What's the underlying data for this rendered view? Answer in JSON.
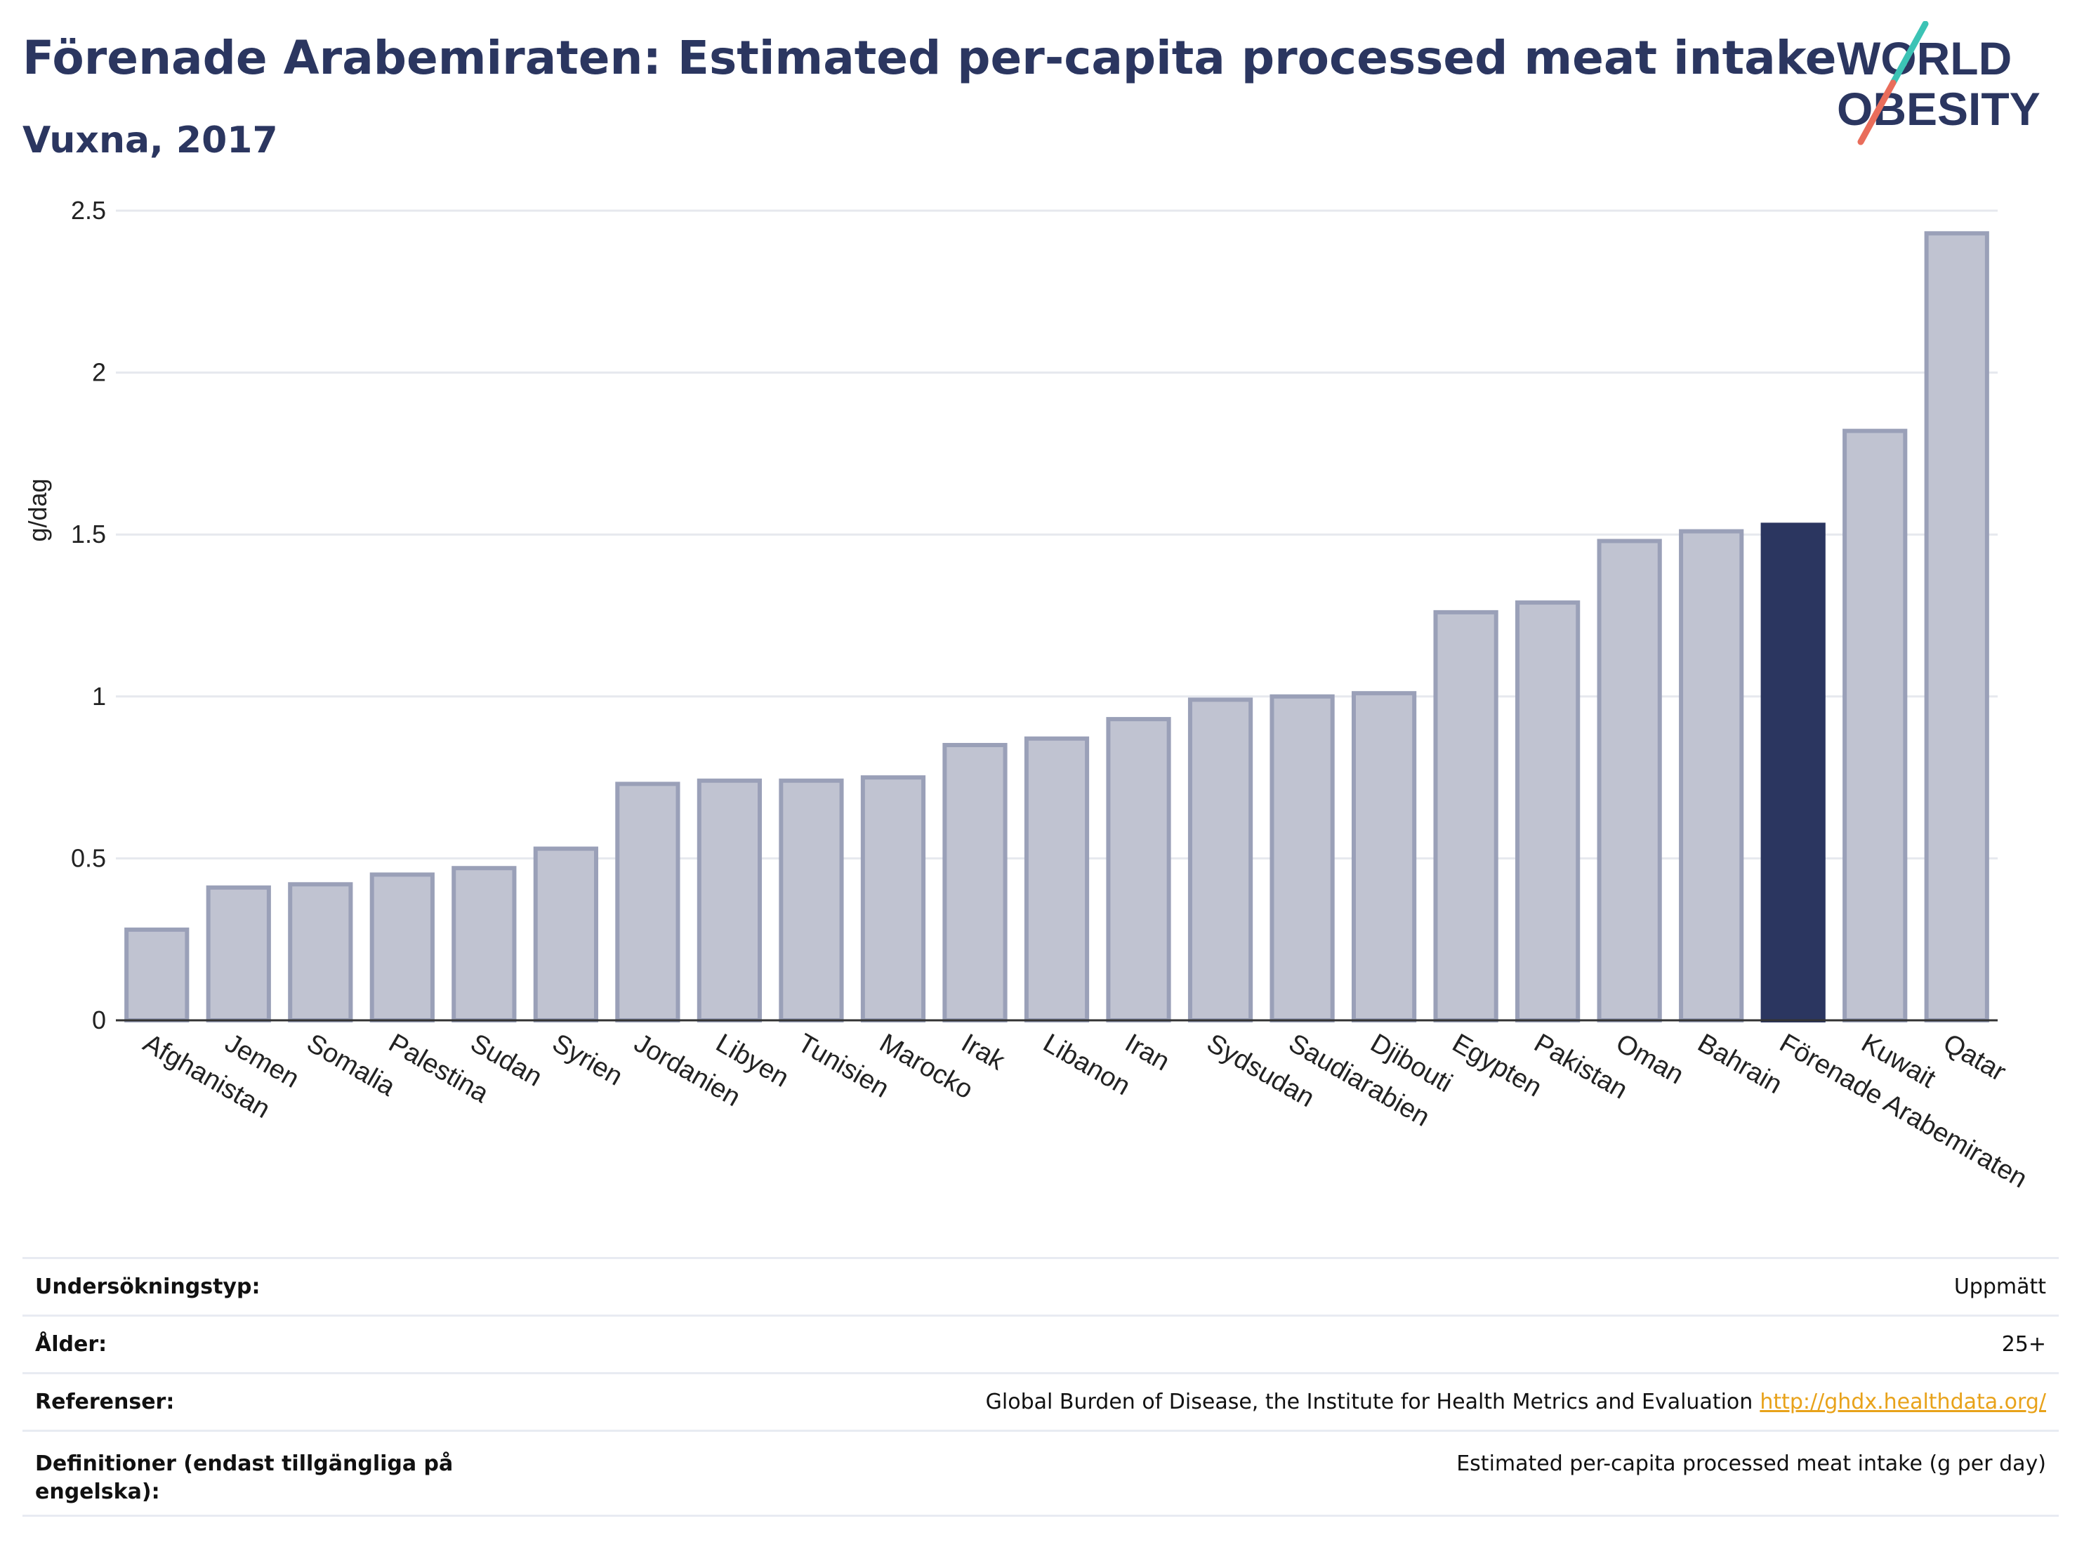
{
  "header": {
    "title": "Förenade Arabemiraten: Estimated per-capita processed meat intake",
    "subtitle": "Vuxna, 2017"
  },
  "logo": {
    "line1": "WORLD",
    "line2": "OBESITY",
    "colors": {
      "text": "#2b3660",
      "slash_top": "#3cc3b5",
      "slash_bottom": "#e96d5b"
    }
  },
  "chart_data": {
    "type": "bar",
    "categories": [
      "Afghanistan",
      "Jemen",
      "Somalia",
      "Palestina",
      "Sudan",
      "Syrien",
      "Jordanien",
      "Libyen",
      "Tunisien",
      "Marocko",
      "Irak",
      "Libanon",
      "Iran",
      "Sydsudan",
      "Saudiarabien",
      "Djibouti",
      "Egypten",
      "Pakistan",
      "Oman",
      "Bahrain",
      "Förenade Arabemiraten",
      "Kuwait",
      "Qatar"
    ],
    "values": [
      0.28,
      0.41,
      0.42,
      0.45,
      0.47,
      0.53,
      0.73,
      0.74,
      0.74,
      0.75,
      0.85,
      0.87,
      0.93,
      0.99,
      1.0,
      1.01,
      1.26,
      1.29,
      1.48,
      1.51,
      1.53,
      1.82,
      2.43
    ],
    "highlight": "Förenade Arabemiraten",
    "ylabel": "g/dag",
    "xlabel": "",
    "ylim": [
      0,
      2.5
    ],
    "yticks": [
      0,
      0.5,
      1,
      1.5,
      2,
      2.5
    ],
    "ytick_labels": [
      "0",
      "0.5",
      "1",
      "1.5",
      "2",
      "2.5"
    ],
    "grid": true,
    "colors": {
      "bar": "#c0c3d1",
      "bar_border": "#9aa0b8",
      "highlight": "#2b3660",
      "grid": "#e6e8ee"
    }
  },
  "info": {
    "rows": [
      {
        "label": "Undersökningstyp:",
        "value": "Uppmätt"
      },
      {
        "label": "Ålder:",
        "value": "25+"
      },
      {
        "label": "Referenser:",
        "value": "Global Burden of Disease, the Institute for Health Metrics and Evaluation",
        "link": "http://ghdx.healthdata.org/"
      },
      {
        "label": "Definitioner (endast tillgängliga på engelska):",
        "value": "Estimated per-capita processed meat intake (g per day)"
      }
    ]
  }
}
